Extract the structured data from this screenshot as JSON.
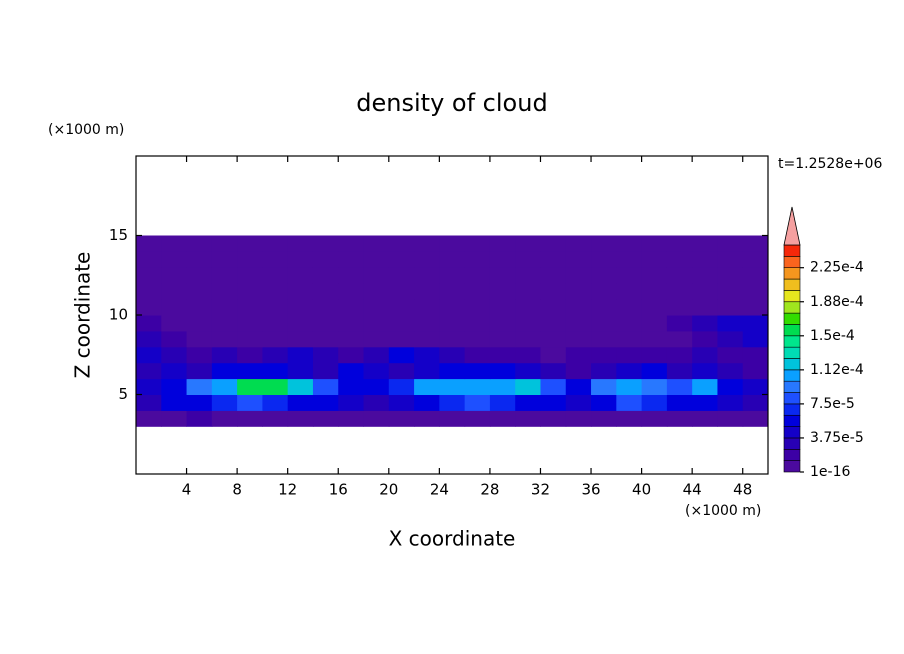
{
  "chart_data": {
    "type": "contour",
    "title": "density of cloud",
    "subtitle": "t=1.2528e+06",
    "x_label": "X coordinate",
    "y_label": "Z coordinate",
    "x_unit": "(×1000 m)",
    "y_unit": "(×1000 m)",
    "xlim": [
      0,
      50
    ],
    "ylim": [
      0,
      20
    ],
    "xticks": [
      4,
      8,
      12,
      16,
      20,
      24,
      28,
      32,
      36,
      40,
      44,
      48
    ],
    "yticks": [
      5,
      10,
      15
    ],
    "x": [
      1,
      3,
      5,
      7,
      9,
      11,
      13,
      15,
      17,
      19,
      21,
      23,
      25,
      27,
      29,
      31,
      33,
      35,
      37,
      39,
      41,
      43,
      45,
      47,
      49
    ],
    "z": [
      3.5,
      4.5,
      5.5,
      6.5,
      7.5,
      8.5,
      9.5,
      10.5,
      11.5,
      12.5,
      13.5,
      14.5
    ],
    "values": [
      [
        8e-06,
        8e-06,
        1.5e-05,
        8e-06,
        8e-06,
        8e-06,
        8e-06,
        8e-06,
        8e-06,
        8e-06,
        8e-06,
        8e-06,
        8e-06,
        8e-06,
        8e-06,
        8e-06,
        8e-06,
        8e-06,
        8e-06,
        8e-06,
        8e-06,
        8e-06,
        8e-06,
        8e-06,
        8e-06
      ],
      [
        3e-05,
        5e-05,
        6e-05,
        7e-05,
        8e-05,
        7e-05,
        6e-05,
        5e-05,
        4e-05,
        3e-05,
        4e-05,
        6e-05,
        7e-05,
        8e-05,
        7e-05,
        6e-05,
        5e-05,
        4e-05,
        6e-05,
        8e-05,
        7e-05,
        6e-05,
        5e-05,
        4e-05,
        3e-05
      ],
      [
        4e-05,
        6e-05,
        9e-05,
        0.00011,
        0.000155,
        0.00016,
        0.00012,
        8e-05,
        6e-05,
        5e-05,
        7e-05,
        0.0001,
        0.00011,
        0.000105,
        0.00011,
        0.000115,
        8e-05,
        6e-05,
        9e-05,
        0.000105,
        9e-05,
        8e-05,
        0.0001,
        6e-05,
        4e-05
      ],
      [
        3e-05,
        4e-05,
        3e-05,
        5e-05,
        6e-05,
        5e-05,
        4e-05,
        3e-05,
        5e-05,
        4e-05,
        3e-05,
        4e-05,
        5e-05,
        6e-05,
        5e-05,
        4e-05,
        3e-05,
        2e-05,
        3e-05,
        4e-05,
        5e-05,
        3e-05,
        4e-05,
        3e-05,
        2e-05
      ],
      [
        4e-05,
        3e-05,
        2e-05,
        3e-05,
        2e-05,
        3e-05,
        4e-05,
        3e-05,
        2e-05,
        3e-05,
        5e-05,
        4e-05,
        3e-05,
        2e-05,
        2e-05,
        1.5e-05,
        1e-05,
        1.5e-05,
        2e-05,
        2e-05,
        1.5e-05,
        2e-05,
        3e-05,
        2e-05,
        2e-05
      ],
      [
        3e-05,
        1.5e-05,
        8e-06,
        6e-06,
        5e-06,
        5e-06,
        5e-06,
        5e-06,
        5e-06,
        5e-06,
        5e-06,
        5e-06,
        5e-06,
        5e-06,
        5e-06,
        5e-06,
        5e-06,
        5e-06,
        5e-06,
        5e-06,
        5e-06,
        8e-06,
        2e-05,
        3e-05,
        4e-05
      ],
      [
        2e-05,
        5e-06,
        5e-06,
        5e-06,
        5e-06,
        5e-06,
        5e-06,
        5e-06,
        5e-06,
        5e-06,
        5e-06,
        5e-06,
        5e-06,
        5e-06,
        5e-06,
        5e-06,
        5e-06,
        5e-06,
        5e-06,
        5e-06,
        5e-06,
        1.5e-05,
        3e-05,
        4e-05,
        4e-05
      ],
      [
        5e-06,
        5e-06,
        5e-06,
        5e-06,
        5e-06,
        5e-06,
        5e-06,
        5e-06,
        5e-06,
        5e-06,
        5e-06,
        5e-06,
        5e-06,
        5e-06,
        5e-06,
        5e-06,
        5e-06,
        5e-06,
        5e-06,
        5e-06,
        5e-06,
        5e-06,
        5e-06,
        5e-06,
        5e-06
      ],
      [
        5e-06,
        5e-06,
        5e-06,
        5e-06,
        5e-06,
        5e-06,
        5e-06,
        5e-06,
        5e-06,
        5e-06,
        5e-06,
        5e-06,
        5e-06,
        5e-06,
        5e-06,
        5e-06,
        5e-06,
        5e-06,
        5e-06,
        5e-06,
        5e-06,
        5e-06,
        5e-06,
        5e-06,
        5e-06
      ],
      [
        5e-06,
        5e-06,
        5e-06,
        5e-06,
        5e-06,
        5e-06,
        5e-06,
        5e-06,
        5e-06,
        5e-06,
        5e-06,
        5e-06,
        5e-06,
        5e-06,
        5e-06,
        5e-06,
        5e-06,
        5e-06,
        5e-06,
        5e-06,
        5e-06,
        5e-06,
        5e-06,
        5e-06,
        5e-06
      ],
      [
        5e-06,
        5e-06,
        5e-06,
        5e-06,
        5e-06,
        5e-06,
        5e-06,
        5e-06,
        5e-06,
        5e-06,
        5e-06,
        5e-06,
        5e-06,
        5e-06,
        5e-06,
        5e-06,
        5e-06,
        5e-06,
        5e-06,
        5e-06,
        5e-06,
        5e-06,
        5e-06,
        5e-06,
        5e-06
      ],
      [
        5e-06,
        5e-06,
        5e-06,
        5e-06,
        5e-06,
        5e-06,
        5e-06,
        5e-06,
        5e-06,
        5e-06,
        5e-06,
        5e-06,
        5e-06,
        5e-06,
        5e-06,
        5e-06,
        5e-06,
        5e-06,
        5e-06,
        5e-06,
        5e-06,
        5e-06,
        5e-06,
        5e-06,
        5e-06
      ]
    ],
    "levels": [
      1e-16,
      1.25e-05,
      2.5e-05,
      3.75e-05,
      5e-05,
      6.25e-05,
      7.5e-05,
      8.75e-05,
      0.0001,
      0.0001125,
      0.000125,
      0.0001375,
      0.00015,
      0.0001625,
      0.000175,
      0.0001875,
      0.0002,
      0.0002125,
      0.000225,
      0.0002375,
      0.00025
    ],
    "colors": [
      "#4b0a9e",
      "#3c00a5",
      "#2800b4",
      "#1400c8",
      "#0000dc",
      "#0a28f0",
      "#1e50ff",
      "#2878ff",
      "#0aa0ff",
      "#00c3dc",
      "#00dcb4",
      "#00e68c",
      "#00dc50",
      "#32dc00",
      "#a0e61e",
      "#e6e61e",
      "#f0be1e",
      "#f5961e",
      "#fa641e",
      "#f5280a"
    ],
    "over_color": "#f5a0a0",
    "colorbar_ticks": [
      1e-16,
      {
        "value": 3.75e-05,
        "label": "3.75e-5"
      },
      {
        "value": 7.5e-05,
        "label": "7.5e-5"
      },
      {
        "value": 0.0001125,
        "label": "1.12e-4"
      },
      {
        "value": 0.00015,
        "label": "1.5e-4"
      },
      {
        "value": 0.0001875,
        "label": "1.88e-4"
      },
      {
        "value": 0.000225,
        "label": "2.25e-4"
      }
    ]
  }
}
